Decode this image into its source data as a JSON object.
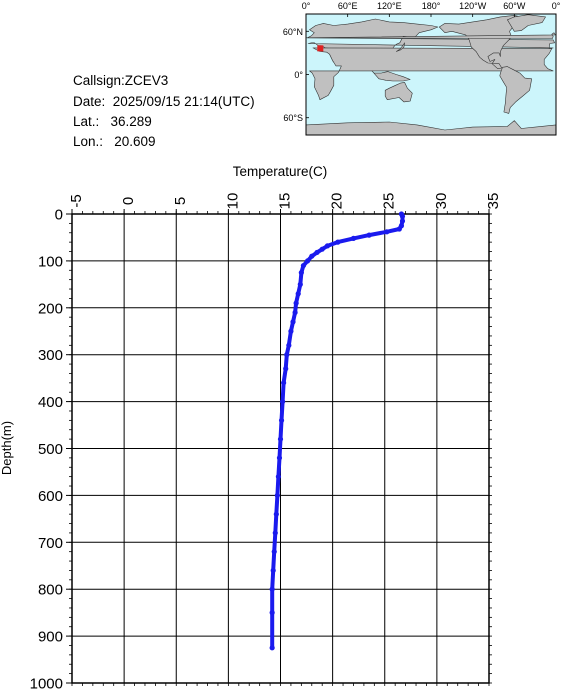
{
  "meta": {
    "callsign": "Callsign:ZCEV3",
    "date": "Date:  2025/09/15 21:14(UTC)",
    "lat": "Lat.:   36.289",
    "lon": "Lon.:   20.609"
  },
  "map": {
    "top_labels": [
      "0°",
      "60°E",
      "120°E",
      "180°",
      "120°W",
      "60°W",
      "0°"
    ],
    "left_labels": [
      "60°N",
      "0°",
      "60°S"
    ],
    "colors": {
      "ocean": "#ccf5fb",
      "land": "#c0c0c0",
      "marker": "#e02020"
    },
    "marker": {
      "lat": 36.289,
      "lon": 20.609
    }
  },
  "chart_data": {
    "type": "line",
    "xlabel": "Temperature(C)",
    "ylabel": "Depth(m)",
    "xlim": [
      -5,
      35
    ],
    "ylim": [
      1000,
      0
    ],
    "xticks": [
      "-5",
      "0",
      "5",
      "10",
      "15",
      "20",
      "25",
      "30",
      "35"
    ],
    "yticks": [
      "0",
      "100",
      "200",
      "300",
      "400",
      "500",
      "600",
      "700",
      "800",
      "900",
      "1000"
    ],
    "grid": true,
    "series_color": "#1a1aee",
    "x": [
      26.6,
      26.7,
      26.7,
      26.6,
      26.4,
      25.2,
      23.5,
      22.0,
      20.5,
      19.5,
      19.0,
      18.5,
      18.0,
      17.6,
      17.2,
      17.0,
      16.9,
      16.7,
      16.5,
      16.4,
      16.2,
      16.0,
      15.8,
      15.6,
      15.5,
      15.3,
      15.2,
      15.1,
      15.0,
      14.9,
      14.8,
      14.7,
      14.6,
      14.5,
      14.4,
      14.3,
      14.2,
      14.2,
      14.2
    ],
    "y": [
      0,
      5,
      15,
      25,
      32,
      38,
      45,
      52,
      60,
      68,
      75,
      82,
      90,
      100,
      110,
      125,
      150,
      170,
      190,
      210,
      230,
      250,
      280,
      300,
      330,
      360,
      400,
      440,
      480,
      520,
      560,
      600,
      640,
      680,
      720,
      760,
      800,
      850,
      925
    ]
  }
}
